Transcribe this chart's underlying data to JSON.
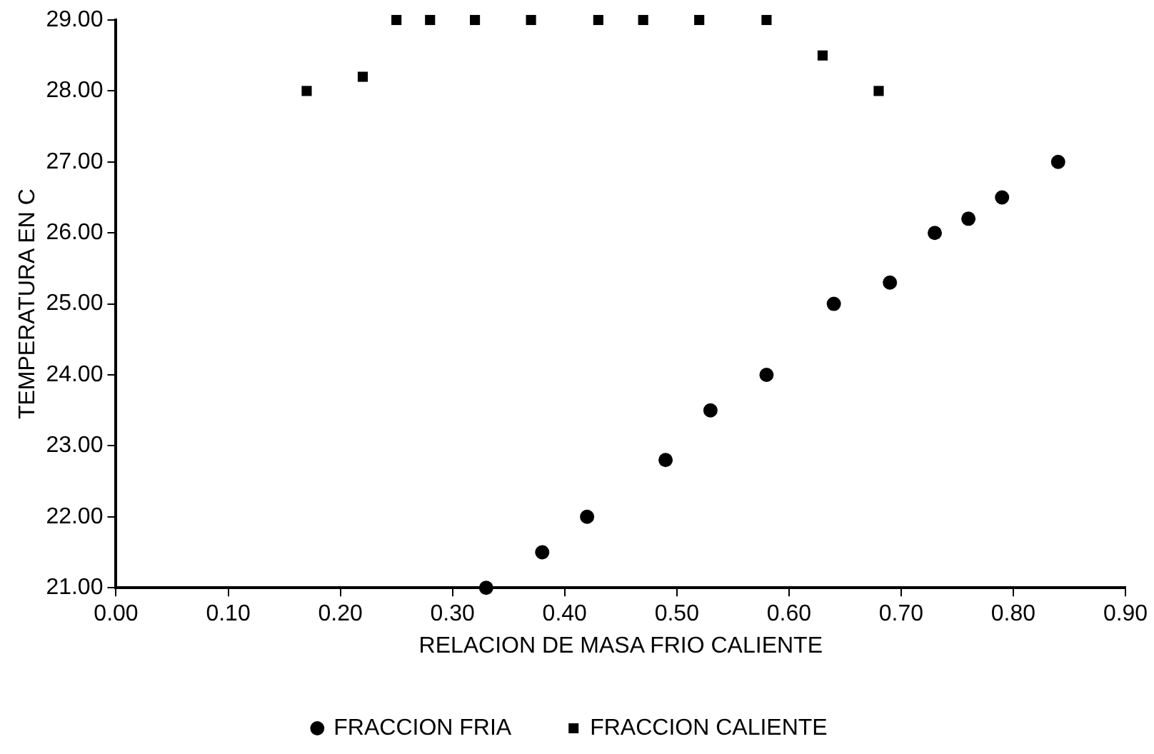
{
  "chart_data": {
    "type": "scatter",
    "xlabel": "RELACION DE MASA FRIO CALIENTE",
    "ylabel": "TEMPERATURA EN C",
    "xlim": [
      0,
      0.9
    ],
    "xticks": [
      {
        "value": 0,
        "label": "0.00"
      },
      {
        "value": 0.1,
        "label": "0.10"
      },
      {
        "value": 0.2,
        "label": "0.20"
      },
      {
        "value": 0.3,
        "label": "0.30"
      },
      {
        "value": 0.4,
        "label": "0.40"
      },
      {
        "value": 0.5,
        "label": "0.50"
      },
      {
        "value": 0.6,
        "label": "0.60"
      },
      {
        "value": 0.7,
        "label": "0.70"
      },
      {
        "value": 0.8,
        "label": "0.80"
      },
      {
        "value": 0.9,
        "label": "0.90"
      }
    ],
    "ylim": [
      21,
      29
    ],
    "yticks": [
      {
        "value": 21,
        "label": "21.00"
      },
      {
        "value": 22,
        "label": "22.00"
      },
      {
        "value": 23,
        "label": "23.00"
      },
      {
        "value": 24,
        "label": "24.00"
      },
      {
        "value": 25,
        "label": "25.00"
      },
      {
        "value": 26,
        "label": "26.00"
      },
      {
        "value": 27,
        "label": "27.00"
      },
      {
        "value": 28,
        "label": "28.00"
      },
      {
        "value": 29,
        "label": "29.00"
      }
    ],
    "grid": false,
    "legend": "bottom",
    "series": [
      {
        "name": "FRACCION FRIA",
        "color": "#000000",
        "marker": "circle",
        "x": [
          0.33,
          0.38,
          0.42,
          0.49,
          0.53,
          0.58,
          0.64,
          0.69,
          0.73,
          0.76,
          0.79,
          0.84
        ],
        "values": [
          21,
          21.5,
          22,
          22.8,
          23.5,
          24,
          25,
          25.3,
          26,
          26.2,
          26.5,
          27
        ]
      },
      {
        "name": "FRACCION CALIENTE",
        "color": "#000000",
        "marker": "square",
        "x": [
          0.17,
          0.22,
          0.25,
          0.28,
          0.32,
          0.37,
          0.43,
          0.47,
          0.52,
          0.58,
          0.63,
          0.68
        ],
        "values": [
          28,
          28.2,
          29,
          29,
          29,
          29,
          29,
          29,
          29,
          29,
          28.5,
          28
        ]
      }
    ]
  }
}
